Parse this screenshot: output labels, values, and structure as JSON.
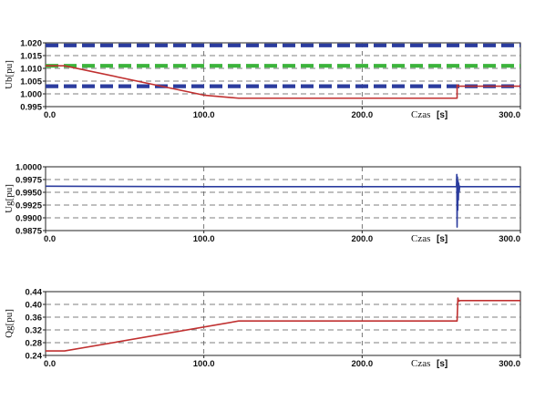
{
  "chart_data": [
    {
      "type": "line",
      "ylabel": "Ub[pu]",
      "xlabel": "Czas",
      "xunit": "[s]",
      "xlim": [
        0,
        300
      ],
      "ylim": [
        0.995,
        1.02
      ],
      "xticks": [
        "0.0",
        "100.0",
        "200.0",
        "300.0"
      ],
      "yticks": [
        "0.995",
        "1.000",
        "1.005",
        "1.010",
        "1.015",
        "1.020"
      ],
      "ytick_values": [
        0.995,
        1.0,
        1.005,
        1.01,
        1.015,
        1.02
      ],
      "grid": true,
      "series": [
        {
          "color": "#2b3c9e",
          "style": "dashed",
          "x": [
            0,
            300
          ],
          "y": [
            1.019,
            1.019
          ]
        },
        {
          "color": "#2b3c9e",
          "style": "dashed",
          "x": [
            0,
            300
          ],
          "y": [
            1.003,
            1.003
          ]
        },
        {
          "color": "#3cb43c",
          "style": "dashed",
          "x": [
            0,
            300
          ],
          "y": [
            1.011,
            1.011
          ]
        },
        {
          "color": "#c03030",
          "style": "solid",
          "x": [
            0,
            12,
            100,
            122,
            260,
            260,
            261,
            300
          ],
          "y": [
            1.011,
            1.011,
            0.9995,
            0.9983,
            0.9983,
            1.0035,
            1.003,
            1.003
          ]
        }
      ]
    },
    {
      "type": "line",
      "ylabel": "Ug[pu]",
      "xlabel": "Czas",
      "xunit": "[s]",
      "xlim": [
        0,
        300
      ],
      "ylim": [
        0.9875,
        1.0
      ],
      "xticks": [
        "0.0",
        "100.0",
        "200.0",
        "300.0"
      ],
      "yticks": [
        "0.9875",
        "0.9900",
        "0.9925",
        "0.9950",
        "0.9975",
        "1.0000"
      ],
      "ytick_values": [
        0.9875,
        0.99,
        0.9925,
        0.995,
        0.9975,
        1.0
      ],
      "grid": true,
      "series": [
        {
          "color": "#2b3c9e",
          "style": "solid",
          "x": [
            0,
            100,
            259.6,
            259.8,
            260,
            260.2,
            260.4,
            260.6,
            260.8,
            261,
            261.3,
            261.6,
            262,
            300
          ],
          "y": [
            0.9962,
            0.9961,
            0.9961,
            0.9985,
            0.9882,
            0.998,
            0.9915,
            0.9972,
            0.9935,
            0.9968,
            0.995,
            0.9962,
            0.9961,
            0.9961
          ]
        }
      ]
    },
    {
      "type": "line",
      "ylabel": "Qg[pu]",
      "xlabel": "Czas",
      "xunit": "[s]",
      "xlim": [
        0,
        300
      ],
      "ylim": [
        0.24,
        0.44
      ],
      "xticks": [
        "0.0",
        "100.0",
        "200.0",
        "300.0"
      ],
      "yticks": [
        "0.24",
        "0.28",
        "0.32",
        "0.36",
        "0.40",
        "0.44"
      ],
      "ytick_values": [
        0.24,
        0.28,
        0.32,
        0.36,
        0.4,
        0.44
      ],
      "grid": true,
      "series": [
        {
          "color": "#c03030",
          "style": "solid",
          "x": [
            0,
            12,
            122,
            260,
            260.5,
            261,
            262,
            300
          ],
          "y": [
            0.254,
            0.254,
            0.348,
            0.348,
            0.42,
            0.41,
            0.412,
            0.412
          ]
        }
      ]
    }
  ]
}
